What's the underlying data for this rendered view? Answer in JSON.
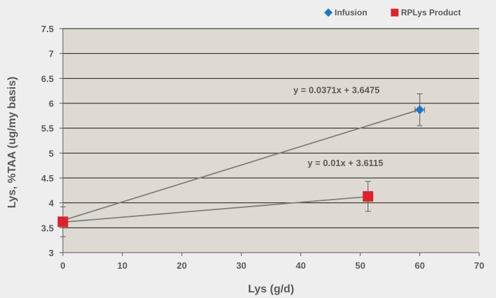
{
  "chart_data": {
    "type": "scatter",
    "xlabel": "Lys (g/d)",
    "ylabel": "Lys, %TAA (ug/my basis)",
    "xlim": [
      0,
      70
    ],
    "ylim": [
      3,
      7.5
    ],
    "x_ticks": [
      0,
      10,
      20,
      30,
      40,
      50,
      60,
      70
    ],
    "y_ticks": [
      3,
      3.5,
      4,
      4.5,
      5,
      5.5,
      6,
      6.5,
      7,
      7.5
    ],
    "x_tick_labels": [
      "0",
      "10",
      "20",
      "30",
      "40",
      "50",
      "60",
      "70"
    ],
    "y_tick_labels": [
      "3",
      "3.5",
      "4",
      "4.5",
      "5",
      "5.5",
      "6",
      "6.5",
      "7",
      "7.5"
    ],
    "grid": "horizontal",
    "legend_position": "top-right",
    "series": [
      {
        "name": "Infusion",
        "marker": "diamond",
        "color": "#1f77c4",
        "trend_color": "#7f7f7f",
        "points": [
          {
            "x": 60,
            "y": 5.87,
            "x_err": 0.8,
            "y_err": 0.32
          }
        ],
        "trendline": {
          "slope": 0.0371,
          "intercept": 3.6475,
          "x_range": [
            0,
            60
          ]
        },
        "equation": "y = 0.0371x + 3.6475",
        "equation_anchor": [
          46,
          6.2
        ]
      },
      {
        "name": "RPLys Product",
        "marker": "square",
        "color": "#d9242f",
        "trend_color": "#7f7f7f",
        "points": [
          {
            "x": 0,
            "y": 3.62,
            "x_err": 0.8,
            "y_err": 0.3
          },
          {
            "x": 51.3,
            "y": 4.13,
            "x_err": 0.8,
            "y_err": 0.3
          }
        ],
        "trendline": {
          "slope": 0.01,
          "intercept": 3.6115,
          "x_range": [
            0,
            51.3
          ]
        },
        "equation": "y = 0.01x + 3.6115",
        "equation_anchor": [
          47.5,
          4.74
        ]
      }
    ]
  }
}
